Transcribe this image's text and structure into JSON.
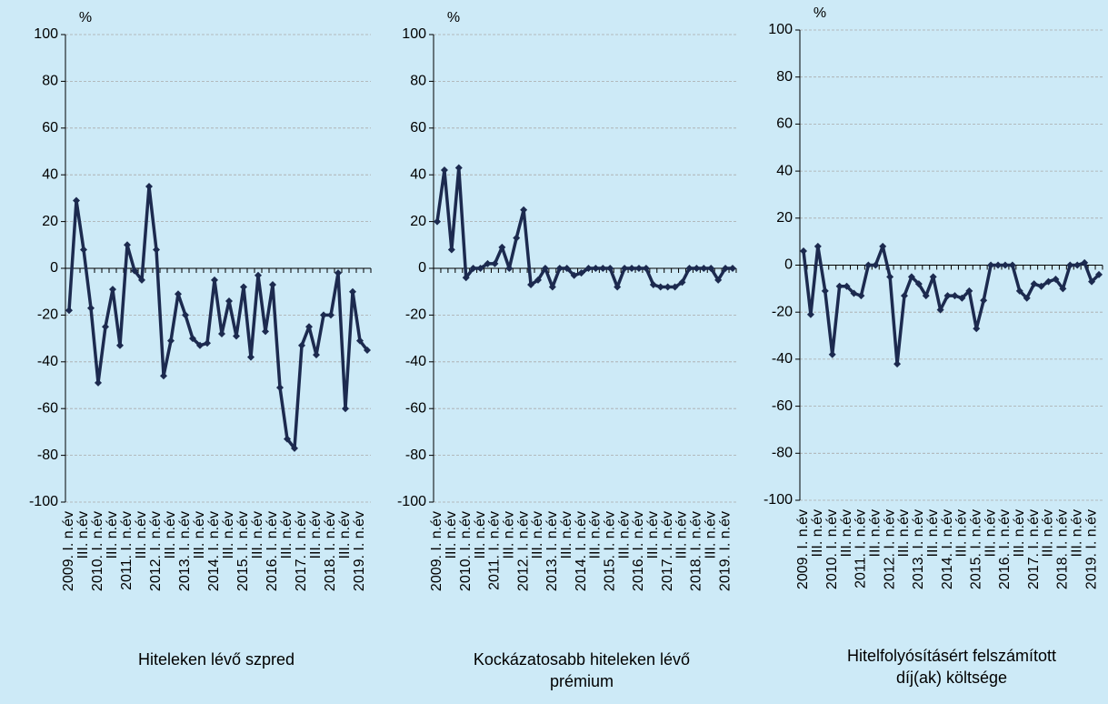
{
  "chart_data": [
    {
      "type": "line",
      "title": "Hiteleken lévő szpred",
      "ylabel": "%",
      "color": "#1c2a4f",
      "grid": true,
      "ylim": [
        -100,
        100
      ],
      "yticks": [
        -100,
        -80,
        -60,
        -40,
        -20,
        0,
        20,
        40,
        60,
        80,
        100
      ],
      "categories": [
        "2009. I. n.év",
        null,
        "III. n.év",
        null,
        "2010. I. n.év",
        null,
        "III. n.év",
        null,
        "2011. I. n.év",
        null,
        "III. n.év",
        null,
        "2012. I. n.év",
        null,
        "III. n.év",
        null,
        "2013. I. n.év",
        null,
        "III. n.év",
        null,
        "2014. I. n.év",
        null,
        "III. n.év",
        null,
        "2015. I. n.év",
        null,
        "III. n.év",
        null,
        "2016. I. n.év",
        null,
        "III. n.év",
        null,
        "2017. I. n.év",
        null,
        "III. n.év",
        null,
        "2018. I. n.év",
        null,
        "III. n.év",
        null,
        "2019. I. n.év",
        null
      ],
      "values": [
        -18,
        29,
        8,
        -17,
        -49,
        -25,
        -9,
        -33,
        10,
        -1,
        -5,
        35,
        8,
        -46,
        -31,
        -11,
        -20,
        -30,
        -33,
        -32,
        -5,
        -28,
        -14,
        -29,
        -8,
        -38,
        -3,
        -27,
        -7,
        -51,
        -73,
        -77,
        -33,
        -25,
        -37,
        -20,
        -20,
        -2,
        -60,
        -10,
        -31,
        -35
      ]
    },
    {
      "type": "line",
      "title": "Kockázatosabb hiteleken lévő prémium",
      "ylabel": "%",
      "color": "#1c2a4f",
      "grid": true,
      "ylim": [
        -100,
        100
      ],
      "yticks": [
        -100,
        -80,
        -60,
        -40,
        -20,
        0,
        20,
        40,
        60,
        80,
        100
      ],
      "categories": [
        "2009. I. n.év",
        null,
        "III. n.év",
        null,
        "2010. I. n.év",
        null,
        "III. n.év",
        null,
        "2011. I. n.év",
        null,
        "III. n.év",
        null,
        "2012. I. n.év",
        null,
        "III. n.év",
        null,
        "2013. I. n.év",
        null,
        "III. n.év",
        null,
        "2014. I. n.év",
        null,
        "III. n.év",
        null,
        "2015. I. n.év",
        null,
        "III. n.év",
        null,
        "2016. I. n.év",
        null,
        "III. n.év",
        null,
        "2017. I. n.év",
        null,
        "III. n.év",
        null,
        "2018. I. n.év",
        null,
        "III. n.év",
        null,
        "2019. I. n.év",
        null
      ],
      "values": [
        20,
        42,
        8,
        43,
        -4,
        0,
        0,
        2,
        2,
        9,
        0,
        13,
        25,
        -7,
        -5,
        0,
        -8,
        0,
        0,
        -3,
        -2,
        0,
        0,
        0,
        0,
        -8,
        0,
        0,
        0,
        0,
        -7,
        -8,
        -8,
        -8,
        -6,
        0,
        0,
        0,
        0,
        -5,
        0,
        0
      ]
    },
    {
      "type": "line",
      "title": "Hitelfolyósításért felszámított díj(ak) költsége",
      "ylabel": "%",
      "color": "#1c2a4f",
      "grid": true,
      "ylim": [
        -100,
        100
      ],
      "yticks": [
        -100,
        -80,
        -60,
        -40,
        -20,
        0,
        20,
        40,
        60,
        80,
        100
      ],
      "categories": [
        "2009. I. n.év",
        null,
        "III. n.év",
        null,
        "2010. I. n.év",
        null,
        "III. n.év",
        null,
        "2011. I. n.év",
        null,
        "III. n.év",
        null,
        "2012. I. n.év",
        null,
        "III. n.év",
        null,
        "2013. I. n.év",
        null,
        "III. n.év",
        null,
        "2014. I. n.év",
        null,
        "III. n.év",
        null,
        "2015. I. n.év",
        null,
        "III. n.év",
        null,
        "2016. I. n.év",
        null,
        "III. n.év",
        null,
        "2017. I. n.év",
        null,
        "III. n.év",
        null,
        "2018. I. n.év",
        null,
        "III. n.év",
        null,
        "2019. I. n.év",
        null
      ],
      "values": [
        6,
        -21,
        8,
        -11,
        -38,
        -9,
        -9,
        -12,
        -13,
        0,
        0,
        8,
        -5,
        -42,
        -13,
        -5,
        -8,
        -13,
        -5,
        -19,
        -13,
        -13,
        -14,
        -11,
        -27,
        -15,
        0,
        0,
        0,
        0,
        -11,
        -14,
        -8,
        -9,
        -7,
        -6,
        -10,
        0,
        0,
        1,
        -7,
        -4
      ]
    }
  ]
}
